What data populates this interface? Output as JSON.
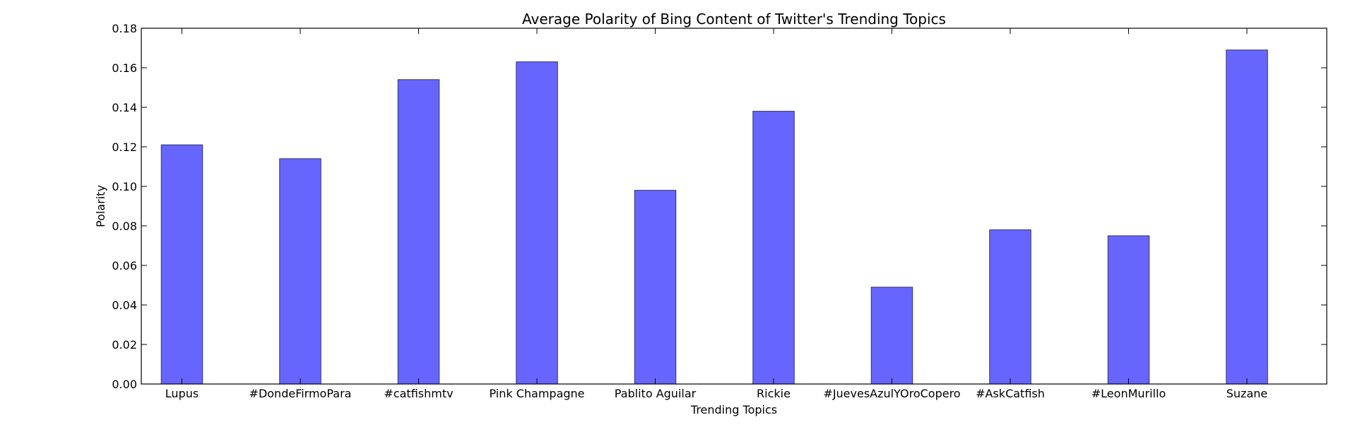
{
  "chart_data": {
    "type": "bar",
    "title": "Average Polarity of Bing Content of Twitter's Trending Topics",
    "xlabel": "Trending Topics",
    "ylabel": "Polarity",
    "categories": [
      "Lupus",
      "#DondeFirmoPara",
      "#catfishmtv",
      "Pink Champagne",
      "Pablito Aguilar",
      "Rickie",
      "#JuevesAzulYOroCopero",
      "#AskCatfish",
      "#LeonMurillo",
      "Suzane"
    ],
    "values": [
      0.121,
      0.114,
      0.154,
      0.163,
      0.098,
      0.138,
      0.049,
      0.078,
      0.075,
      0.169
    ],
    "ylim": [
      0,
      0.18
    ],
    "yticks": [
      "0.00",
      "0.02",
      "0.04",
      "0.06",
      "0.08",
      "0.10",
      "0.12",
      "0.14",
      "0.16",
      "0.18"
    ],
    "bar_color": "#6666ff",
    "bar_edge_color": "#333366",
    "grid": false,
    "legend": "none"
  }
}
